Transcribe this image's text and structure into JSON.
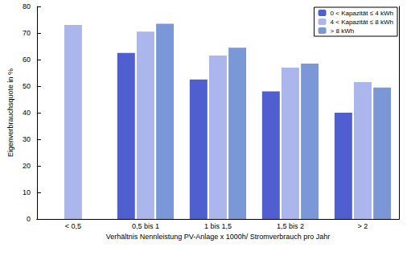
{
  "chart_data": {
    "type": "bar",
    "x_label": "Verhältnis Nennleistung PV-Anlage x 1000h/ Stromverbrauch pro Jahr",
    "y_label": "Eigenverbrauchsquote in %",
    "categories": [
      "< 0,5",
      "0,5 bis 1",
      "1 bis 1,5",
      "1,5 bis 2",
      "> 2"
    ],
    "series": [
      {
        "name": "0 < Kapazität ≤ 4 kWh",
        "color": "#4f5fcf",
        "values": [
          null,
          62.5,
          52.5,
          48,
          40
        ]
      },
      {
        "name": "4 < Kapazität ≤ 8 kWh",
        "color": "#aab6ec",
        "values": [
          73,
          70.5,
          61.5,
          57,
          51.5
        ]
      },
      {
        "name": "> 8 kWh",
        "color": "#7a98d8",
        "values": [
          null,
          73.5,
          64.5,
          58.5,
          49.5
        ]
      }
    ],
    "ylim": [
      0,
      80
    ],
    "yticks": [
      0,
      10,
      20,
      30,
      40,
      50,
      60,
      70,
      80
    ],
    "grid": false,
    "legend": "upper right"
  }
}
